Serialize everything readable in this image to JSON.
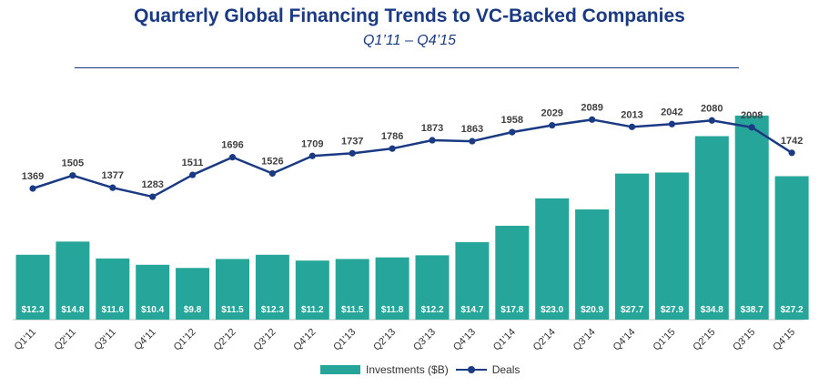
{
  "chart_data": {
    "type": "bar+line",
    "title": "Quarterly Global Financing Trends to VC-Backed Companies",
    "subtitle": "Q1’11 – Q4’15",
    "categories": [
      "Q1'11",
      "Q2'11",
      "Q3'11",
      "Q4'11",
      "Q1'12",
      "Q2'12",
      "Q3'12",
      "Q4'12",
      "Q1'13",
      "Q2'13",
      "Q3'13",
      "Q4'13",
      "Q1'14",
      "Q2'14",
      "Q3'14",
      "Q4'14",
      "Q1'15",
      "Q2'15",
      "Q3'15",
      "Q4'15"
    ],
    "series": [
      {
        "name": "Investments ($B)",
        "type": "bar",
        "color": "#26a69a",
        "values": [
          12.3,
          14.8,
          11.6,
          10.4,
          9.8,
          11.5,
          12.3,
          11.2,
          11.5,
          11.8,
          12.2,
          14.7,
          17.8,
          23.0,
          20.9,
          27.7,
          27.9,
          34.8,
          38.7,
          27.2
        ],
        "labels": [
          "$12.3",
          "$14.8",
          "$11.6",
          "$10.4",
          "$9.8",
          "$11.5",
          "$12.3",
          "$11.2",
          "$11.5",
          "$11.8",
          "$12.2",
          "$14.7",
          "$17.8",
          "$23.0",
          "$20.9",
          "$27.7",
          "$27.9",
          "$34.8",
          "$38.7",
          "$27.2"
        ]
      },
      {
        "name": "Deals",
        "type": "line",
        "color": "#1b3a84",
        "values": [
          1369,
          1505,
          1377,
          1283,
          1511,
          1696,
          1526,
          1709,
          1737,
          1786,
          1873,
          1863,
          1958,
          2029,
          2089,
          2013,
          2042,
          2080,
          2008,
          1742
        ]
      }
    ],
    "legend": {
      "position": "bottom-center",
      "entries": [
        "Investments ($B)",
        "Deals"
      ]
    }
  }
}
